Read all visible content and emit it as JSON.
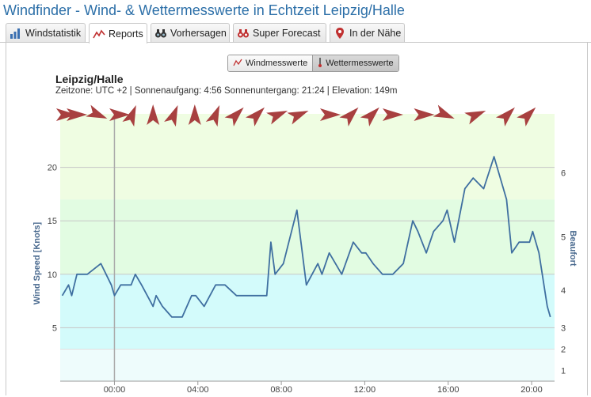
{
  "title": "Windfinder - Wind- & Wettermesswerte in Echtzeit Leipzig/Halle",
  "tabs": [
    {
      "label": "Windstatistik",
      "icon": "bar-chart-icon"
    },
    {
      "label": "Reports",
      "icon": "line-chart-icon",
      "active": true
    },
    {
      "label": "Vorhersagen",
      "icon": "binoculars-icon"
    },
    {
      "label": "Super Forecast",
      "icon": "binoculars-red-icon"
    },
    {
      "label": "In der Nähe",
      "icon": "map-pin-icon"
    }
  ],
  "toggle": {
    "wind": "Windmesswerte",
    "weather": "Wettermesswerte",
    "selected": "weather"
  },
  "station": {
    "name": "Leipzig/Halle",
    "info": "Zeitzone: UTC +2 | Sonnenaufgang: 4:56 Sonnenuntergang: 21:24 | Elevation: 149m"
  },
  "colors": {
    "line": "#3f6fa0",
    "arrow": "#a84040",
    "title": "#2c6fa8",
    "axis_title": "#4a6a8f",
    "marker": "#aaaaaa"
  },
  "chart_data": {
    "type": "line",
    "x_unit": "hours relative to 00:00",
    "ylabel": "Wind Speed [Knots]",
    "y2label": "Beaufort",
    "ylim": [
      0,
      25
    ],
    "yticks": [
      5,
      10,
      15,
      20
    ],
    "xticks": [
      "00:00",
      "04:00",
      "08:00",
      "12:00",
      "16:00",
      "20:00"
    ],
    "xtick_hours": [
      0,
      4,
      8,
      12,
      16,
      20
    ],
    "xlim": [
      -2.6,
      21.1
    ],
    "current_time_marker": 0,
    "beaufort_labels": [
      {
        "label": "1",
        "knots": 1
      },
      {
        "label": "2",
        "knots": 3
      },
      {
        "label": "3",
        "knots": 5
      },
      {
        "label": "4",
        "knots": 8.5
      },
      {
        "label": "5",
        "knots": 13.5
      },
      {
        "label": "6",
        "knots": 19.5
      }
    ],
    "bands": [
      {
        "from": 0,
        "to": 3,
        "color": "#eefcfc"
      },
      {
        "from": 3,
        "to": 10,
        "color": "#d3fbfb"
      },
      {
        "from": 10,
        "to": 17,
        "color": "#e2fce2"
      },
      {
        "from": 17,
        "to": 25,
        "color": "#effde2"
      }
    ],
    "series": [
      {
        "values": [
          [
            -2.5,
            8
          ],
          [
            -2.2,
            9
          ],
          [
            -2.05,
            8
          ],
          [
            -1.8,
            10
          ],
          [
            -1.3,
            10
          ],
          [
            -0.65,
            11
          ],
          [
            -0.15,
            9
          ],
          [
            0,
            8
          ],
          [
            0.3,
            9
          ],
          [
            0.8,
            9
          ],
          [
            1,
            10
          ],
          [
            1.3,
            9
          ],
          [
            1.85,
            7
          ],
          [
            2.0,
            8
          ],
          [
            2.3,
            7
          ],
          [
            2.75,
            6
          ],
          [
            3.25,
            6
          ],
          [
            3.7,
            8
          ],
          [
            3.9,
            8
          ],
          [
            4.3,
            7
          ],
          [
            4.85,
            9
          ],
          [
            5.3,
            9
          ],
          [
            5.85,
            8
          ],
          [
            7.3,
            8
          ],
          [
            7.5,
            13
          ],
          [
            7.7,
            10
          ],
          [
            8.1,
            11
          ],
          [
            8.75,
            16
          ],
          [
            9.2,
            9
          ],
          [
            9.75,
            11
          ],
          [
            9.95,
            10
          ],
          [
            10.3,
            12
          ],
          [
            10.9,
            10
          ],
          [
            11.45,
            13
          ],
          [
            11.85,
            12
          ],
          [
            12.05,
            12
          ],
          [
            12.4,
            11
          ],
          [
            12.85,
            10
          ],
          [
            13.35,
            10
          ],
          [
            13.85,
            11
          ],
          [
            14.3,
            15
          ],
          [
            14.55,
            14
          ],
          [
            14.95,
            12
          ],
          [
            15.3,
            14
          ],
          [
            15.75,
            15
          ],
          [
            15.95,
            16
          ],
          [
            16.3,
            13
          ],
          [
            16.8,
            18
          ],
          [
            17.2,
            19
          ],
          [
            17.7,
            18
          ],
          [
            18.2,
            21
          ],
          [
            18.8,
            17
          ],
          [
            19.05,
            12
          ],
          [
            19.4,
            13
          ],
          [
            19.9,
            13
          ],
          [
            20.05,
            14
          ],
          [
            20.35,
            12
          ],
          [
            20.75,
            7
          ],
          [
            20.9,
            6
          ]
        ]
      }
    ],
    "direction_arrows": [
      {
        "x": -2.3,
        "dir": "W"
      },
      {
        "x": -1.8,
        "dir": "W"
      },
      {
        "x": -0.8,
        "dir": "WNW"
      },
      {
        "x": 0.25,
        "dir": "W"
      },
      {
        "x": 0.85,
        "dir": "SSW"
      },
      {
        "x": 1.85,
        "dir": "S"
      },
      {
        "x": 2.85,
        "dir": "SSW"
      },
      {
        "x": 3.85,
        "dir": "S"
      },
      {
        "x": 4.85,
        "dir": "SSW"
      },
      {
        "x": 5.85,
        "dir": "SW"
      },
      {
        "x": 6.85,
        "dir": "SW"
      },
      {
        "x": 7.85,
        "dir": "WSW"
      },
      {
        "x": 8.85,
        "dir": "WSW"
      },
      {
        "x": 10.35,
        "dir": "W"
      },
      {
        "x": 11.35,
        "dir": "SW"
      },
      {
        "x": 12.35,
        "dir": "SW"
      },
      {
        "x": 13.35,
        "dir": "W"
      },
      {
        "x": 14.85,
        "dir": "W"
      },
      {
        "x": 15.85,
        "dir": "WNW"
      },
      {
        "x": 17.35,
        "dir": "WSW"
      },
      {
        "x": 18.85,
        "dir": "SW"
      },
      {
        "x": 19.85,
        "dir": "SW"
      }
    ]
  }
}
